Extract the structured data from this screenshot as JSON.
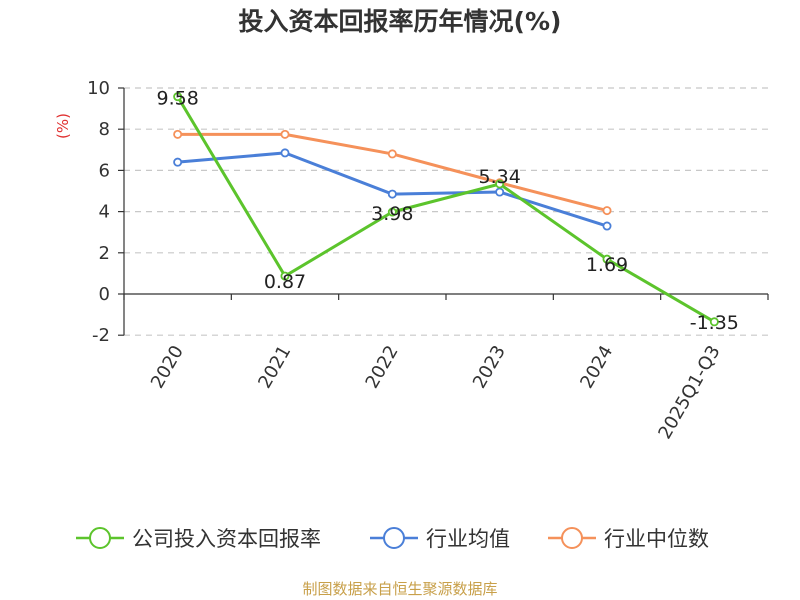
{
  "chart_data": {
    "type": "line",
    "title": "投入资本回报率历年情况(%)",
    "ylabel": "(%)",
    "xlabel": "",
    "categories": [
      "2020",
      "2021",
      "2022",
      "2023",
      "2024",
      "2025Q1-Q3"
    ],
    "ylim": [
      -2,
      10
    ],
    "yticks": [
      "10",
      "8",
      "6",
      "4",
      "2",
      "0",
      "-2"
    ],
    "grid": true,
    "legend_position": "bottom",
    "series": [
      {
        "name": "公司投入资本回报率",
        "color": "#5cc42c",
        "values": [
          9.58,
          0.87,
          3.98,
          5.34,
          1.69,
          -1.35
        ],
        "labels": [
          "9.58",
          "0.87",
          "3.98",
          "5.34",
          "1.69",
          "-1.35"
        ]
      },
      {
        "name": "行业均值",
        "color": "#4a7fd8",
        "values": [
          6.4,
          6.85,
          4.85,
          4.95,
          3.3,
          null
        ]
      },
      {
        "name": "行业中位数",
        "color": "#f5915a",
        "values": [
          7.75,
          7.75,
          6.8,
          5.4,
          4.05,
          null
        ]
      }
    ]
  },
  "source": "制图数据来自恒生聚源数据库"
}
